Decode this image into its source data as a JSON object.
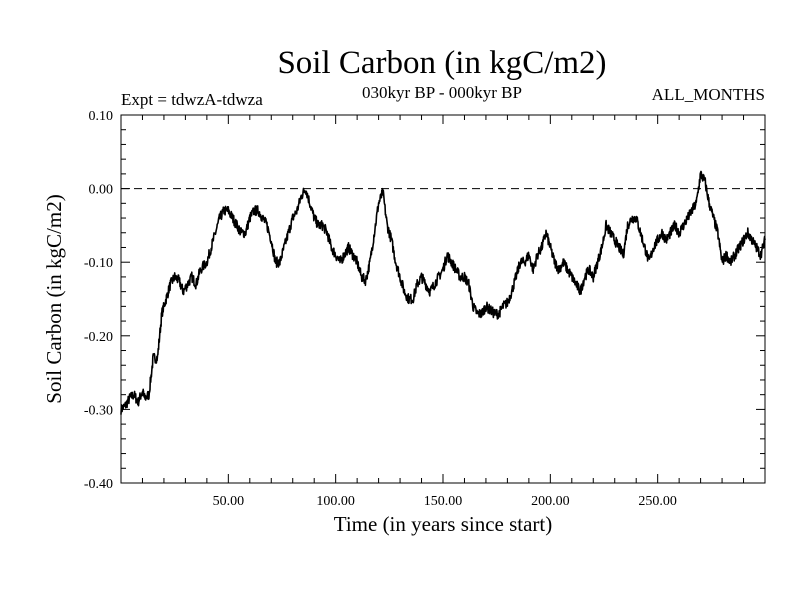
{
  "chart_data": {
    "type": "line",
    "title": "Soil Carbon (in kgC/m2)",
    "subtitle": "030kyr BP - 000kyr BP",
    "experiment": "Expt = tdwzA-tdwza",
    "months_label": "ALL_MONTHS",
    "xlabel": "Time (in years since start)",
    "ylabel": "Soil Carbon (in kgC/m2)",
    "xlim": [
      0,
      300
    ],
    "ylim": [
      -0.4,
      0.1
    ],
    "x_ticks": [
      50,
      100,
      150,
      200,
      250
    ],
    "x_tick_labels": [
      "50.00",
      "100.00",
      "150.00",
      "200.00",
      "250.00"
    ],
    "y_ticks": [
      0.1,
      0.0,
      -0.1,
      -0.2,
      -0.3,
      -0.4
    ],
    "y_tick_labels": [
      "0.10",
      "0.00",
      "-0.10",
      "-0.20",
      "-0.30",
      "-0.40"
    ],
    "reference_line": {
      "y": 0.0,
      "style": "dashed"
    },
    "series": [
      {
        "name": "Soil Carbon",
        "x": [
          0,
          2,
          4,
          6,
          8,
          10,
          11,
          13,
          15,
          17,
          19,
          21,
          23,
          25,
          27,
          29,
          31,
          33,
          35,
          37,
          40,
          42,
          44,
          46,
          48,
          50,
          52,
          54,
          56,
          58,
          60,
          62,
          64,
          66,
          68,
          70,
          72,
          74,
          76,
          78,
          80,
          82,
          84,
          86,
          88,
          90,
          92,
          94,
          96,
          98,
          100,
          102,
          104,
          106,
          108,
          110,
          112,
          114,
          116,
          118,
          120,
          122,
          124,
          126,
          128,
          130,
          132,
          134,
          136,
          138,
          140,
          142,
          144,
          146,
          148,
          150,
          152,
          154,
          156,
          158,
          160,
          162,
          164,
          166,
          168,
          170,
          172,
          174,
          176,
          178,
          180,
          182,
          184,
          186,
          188,
          190,
          192,
          194,
          196,
          198,
          200,
          202,
          204,
          206,
          208,
          210,
          212,
          214,
          216,
          218,
          220,
          222,
          224,
          226,
          228,
          230,
          232,
          234,
          236,
          238,
          240,
          242,
          244,
          246,
          248,
          250,
          252,
          254,
          256,
          258,
          260,
          262,
          264,
          266,
          268,
          270,
          272,
          274,
          276,
          278,
          280,
          282,
          284,
          286,
          288,
          290,
          292,
          294,
          296,
          298,
          300
        ],
        "y": [
          -0.3,
          -0.295,
          -0.285,
          -0.28,
          -0.29,
          -0.275,
          -0.285,
          -0.28,
          -0.23,
          -0.23,
          -0.17,
          -0.15,
          -0.13,
          -0.12,
          -0.125,
          -0.14,
          -0.13,
          -0.12,
          -0.13,
          -0.11,
          -0.1,
          -0.08,
          -0.06,
          -0.04,
          -0.03,
          -0.03,
          -0.04,
          -0.05,
          -0.06,
          -0.06,
          -0.04,
          -0.03,
          -0.03,
          -0.04,
          -0.05,
          -0.07,
          -0.1,
          -0.1,
          -0.08,
          -0.06,
          -0.04,
          -0.03,
          -0.01,
          0.0,
          -0.02,
          -0.04,
          -0.05,
          -0.05,
          -0.06,
          -0.08,
          -0.09,
          -0.1,
          -0.09,
          -0.08,
          -0.09,
          -0.1,
          -0.12,
          -0.125,
          -0.1,
          -0.06,
          -0.02,
          -0.005,
          -0.05,
          -0.07,
          -0.1,
          -0.12,
          -0.14,
          -0.15,
          -0.15,
          -0.13,
          -0.12,
          -0.13,
          -0.14,
          -0.13,
          -0.12,
          -0.11,
          -0.09,
          -0.1,
          -0.11,
          -0.12,
          -0.12,
          -0.13,
          -0.16,
          -0.17,
          -0.17,
          -0.16,
          -0.165,
          -0.17,
          -0.17,
          -0.16,
          -0.155,
          -0.14,
          -0.12,
          -0.1,
          -0.1,
          -0.09,
          -0.11,
          -0.09,
          -0.08,
          -0.06,
          -0.08,
          -0.1,
          -0.11,
          -0.1,
          -0.11,
          -0.12,
          -0.13,
          -0.14,
          -0.12,
          -0.11,
          -0.12,
          -0.1,
          -0.08,
          -0.05,
          -0.06,
          -0.07,
          -0.08,
          -0.09,
          -0.05,
          -0.04,
          -0.04,
          -0.06,
          -0.08,
          -0.1,
          -0.08,
          -0.07,
          -0.06,
          -0.07,
          -0.06,
          -0.05,
          -0.06,
          -0.05,
          -0.04,
          -0.03,
          -0.02,
          0.02,
          0.01,
          -0.02,
          -0.04,
          -0.06,
          -0.1,
          -0.09,
          -0.1,
          -0.09,
          -0.08,
          -0.07,
          -0.06,
          -0.07,
          -0.08,
          -0.09,
          -0.07
        ]
      }
    ]
  }
}
